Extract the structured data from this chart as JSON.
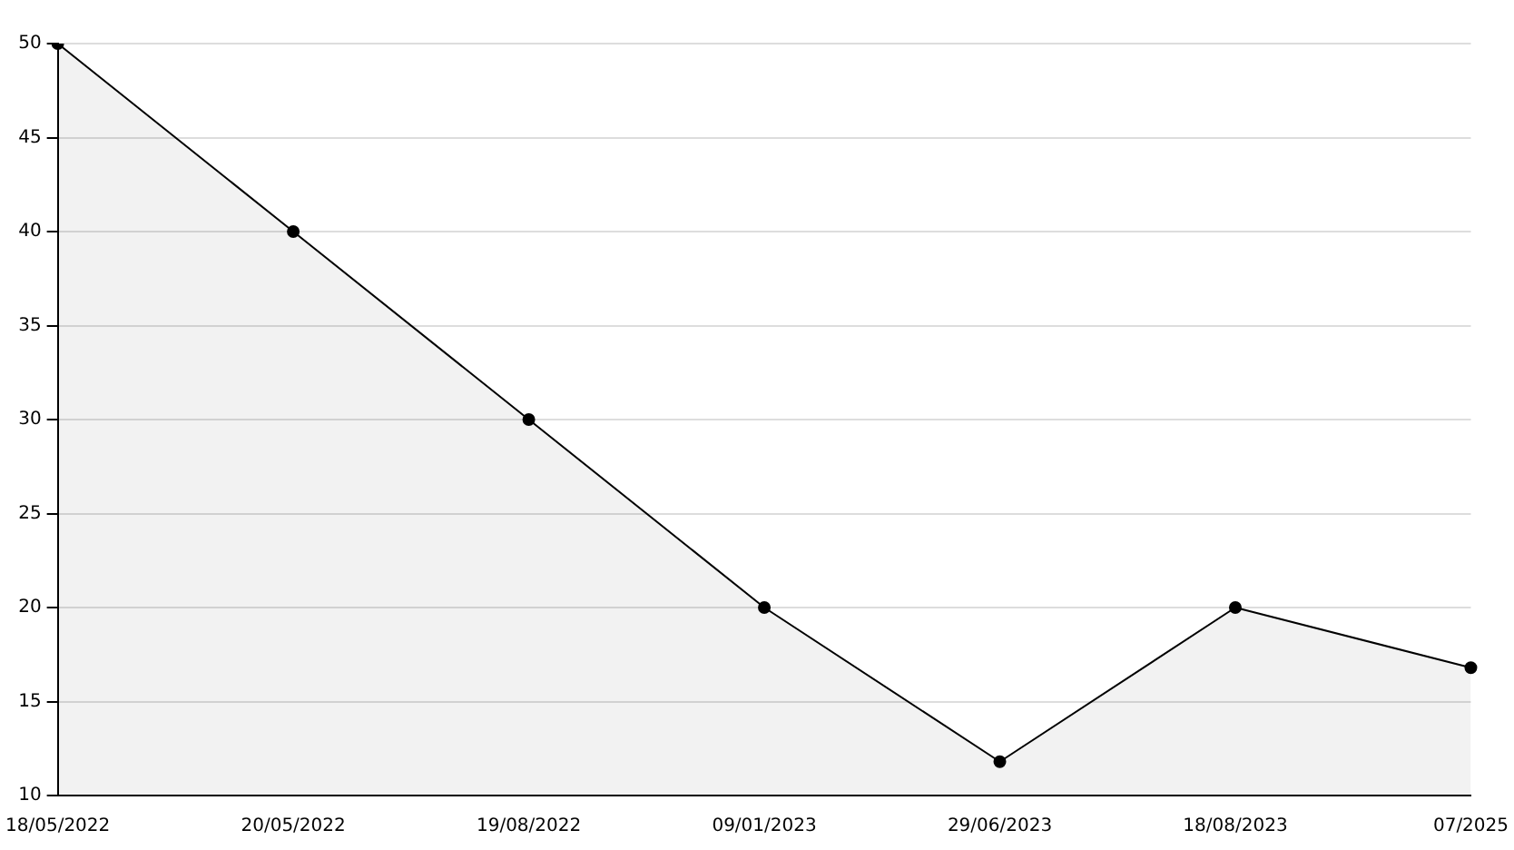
{
  "chart_data": {
    "type": "area",
    "categories": [
      "18/05/2022",
      "20/05/2022",
      "19/08/2022",
      "09/01/2023",
      "29/06/2023",
      "18/08/2023",
      "07/2025"
    ],
    "series": [
      {
        "color": "#000000",
        "values": [
          50,
          40,
          30,
          20,
          11.8,
          20,
          16.8
        ]
      }
    ],
    "ylim": [
      10,
      50
    ],
    "yticks": [
      10,
      15,
      20,
      25,
      30,
      35,
      40,
      45,
      50
    ],
    "grid": "y",
    "legend": false,
    "marker": "circle",
    "line_style": "solid"
  }
}
